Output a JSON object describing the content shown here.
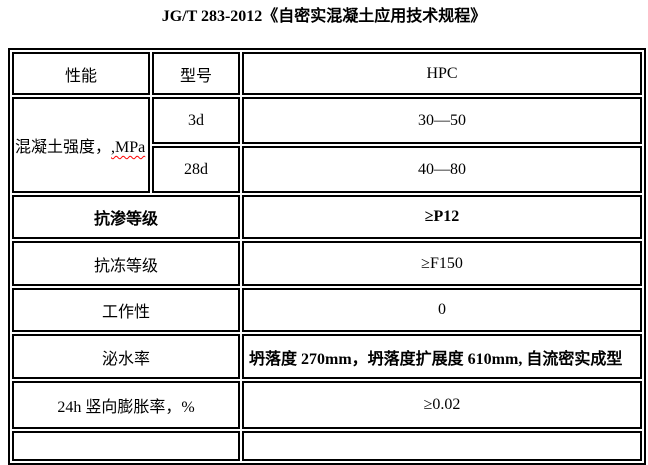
{
  "title": "JG/T 283-2012《自密实混凝土应用技术规程》",
  "colors": {
    "border": "#000000",
    "text": "#000000",
    "background": "#ffffff",
    "spellcheck_underline": "#ff0000"
  },
  "table": {
    "header": {
      "performance": "性能",
      "model": "型号",
      "type": "HPC"
    },
    "strength": {
      "label": "混凝土强度，",
      "unit_misspelled": ",MPa",
      "rows": [
        {
          "age": "3d",
          "value": "30—50"
        },
        {
          "age": "28d",
          "value": "40—80"
        }
      ]
    },
    "rows": [
      {
        "label": "抗渗等级",
        "value": "≥P12"
      },
      {
        "label": "抗冻等级",
        "value": "≥F150"
      },
      {
        "label": "工作性",
        "value": "0"
      },
      {
        "label": "泌水率",
        "value": "坍落度 270mm，坍落度扩展度 610mm, 自流密实成型"
      },
      {
        "label": "24h 竖向膨胀率，%",
        "value": "≥0.02"
      }
    ]
  }
}
